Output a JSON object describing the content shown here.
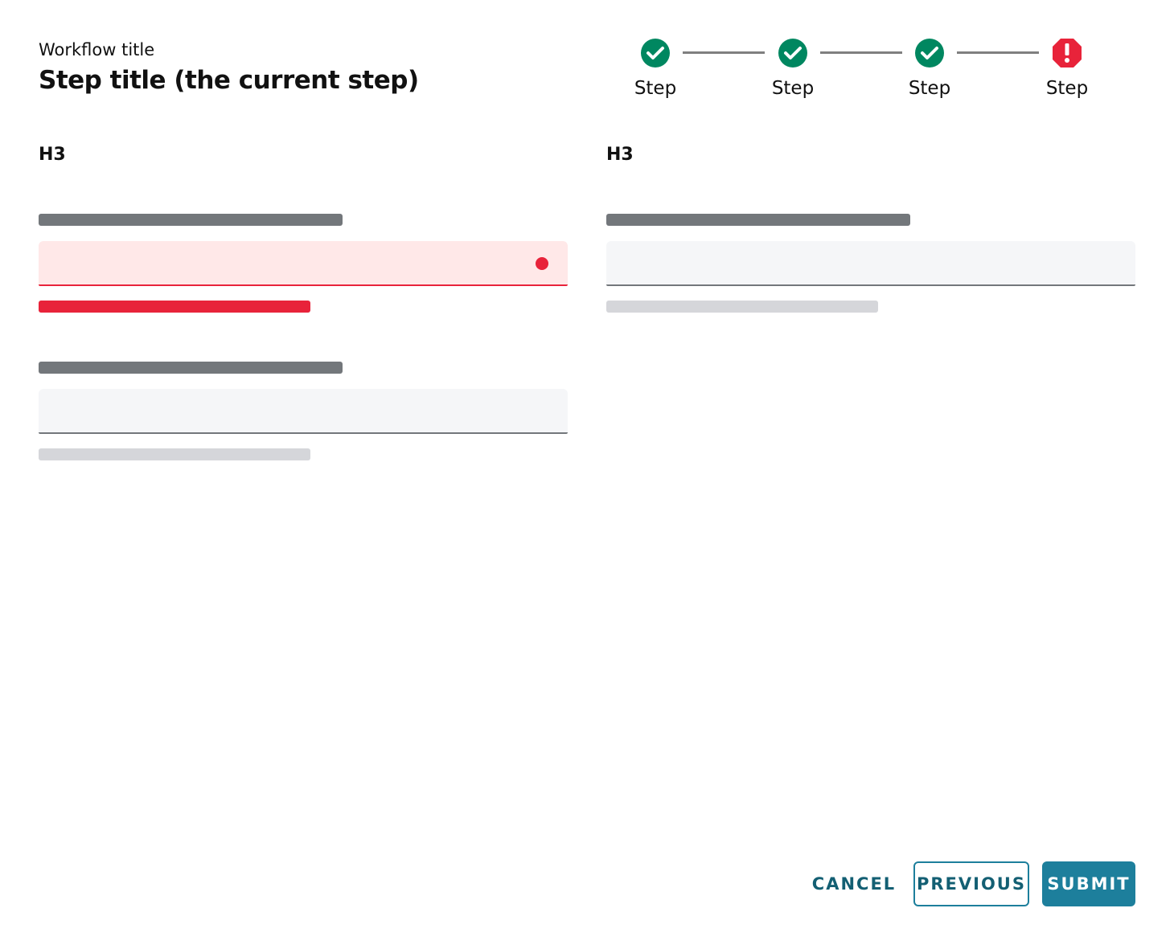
{
  "header": {
    "workflow_title": "Workflow title",
    "step_title": "Step title (the current step)"
  },
  "stepper": {
    "steps": [
      {
        "label": "Step",
        "status": "complete",
        "icon": "check-circle-icon"
      },
      {
        "label": "Step",
        "status": "complete",
        "icon": "check-circle-icon"
      },
      {
        "label": "Step",
        "status": "complete",
        "icon": "check-circle-icon"
      },
      {
        "label": "Step",
        "status": "error",
        "icon": "error-octagon-icon"
      }
    ]
  },
  "sections": [
    {
      "heading": "H3"
    },
    {
      "heading": "H3"
    }
  ],
  "actions": {
    "cancel": "CANCEL",
    "previous": "PREVIOUS",
    "submit": "SUBMIT"
  },
  "colors": {
    "success": "#008760",
    "error": "#e8233a",
    "primary": "#1d7f9c",
    "error_bg": "#ffe8e8"
  }
}
